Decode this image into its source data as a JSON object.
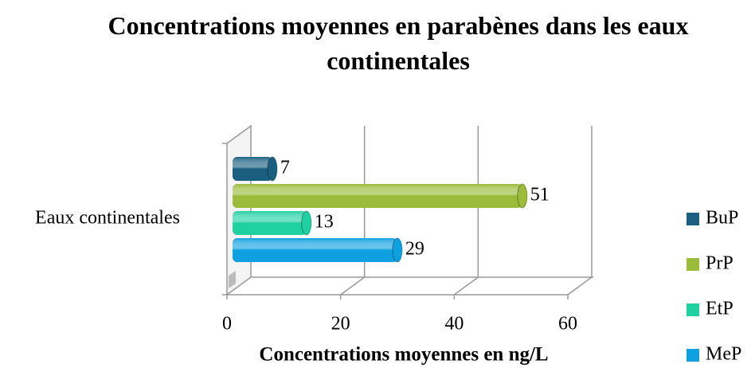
{
  "chart_data": {
    "type": "bar",
    "orientation": "horizontal",
    "title": "Concentrations moyennes en parabènes dans les eaux continentales",
    "xlabel": "Concentrations moyennes en ng/L",
    "categories": [
      "Eaux continentales"
    ],
    "series": [
      {
        "name": "BuP",
        "color": "#1a5f80",
        "values": [
          7
        ]
      },
      {
        "name": "PrP",
        "color": "#9bbb3a",
        "values": [
          51
        ]
      },
      {
        "name": "EtP",
        "color": "#1fd0a0",
        "values": [
          13
        ]
      },
      {
        "name": "MeP",
        "color": "#0ea0e0",
        "values": [
          29
        ]
      }
    ],
    "xlim": [
      0,
      60
    ],
    "xticks": [
      0,
      20,
      40,
      60
    ],
    "grid": true,
    "legend": "right"
  }
}
